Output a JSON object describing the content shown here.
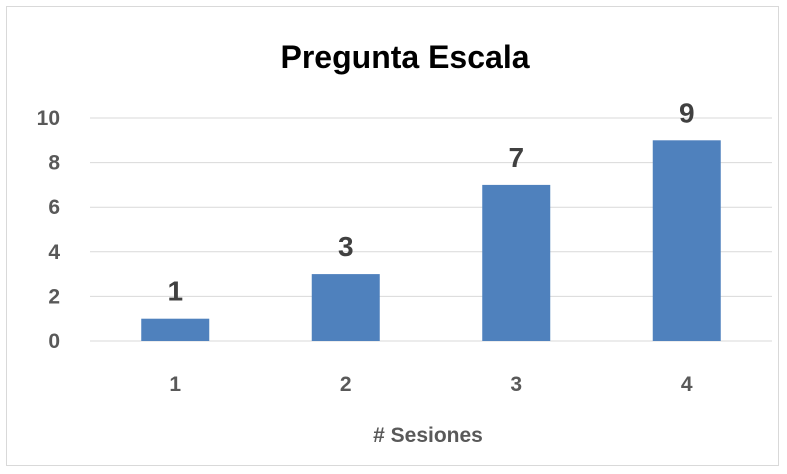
{
  "chart_data": {
    "type": "bar",
    "title": "Pregunta Escala",
    "xlabel": "# Sesiones",
    "ylabel": "",
    "categories": [
      "1",
      "2",
      "3",
      "4"
    ],
    "values": [
      1,
      3,
      7,
      9
    ],
    "data_labels": [
      "1",
      "3",
      "7",
      "9"
    ],
    "yticks": [
      "0",
      "2",
      "4",
      "6",
      "8",
      "10"
    ],
    "ylim": [
      0,
      10
    ],
    "grid": true,
    "legend": "none",
    "colors": {
      "bar": "#4f81bd",
      "grid": "#d9d9d9",
      "tick_text": "#595959",
      "title_text": "#000000",
      "data_label_text": "#404040"
    }
  }
}
